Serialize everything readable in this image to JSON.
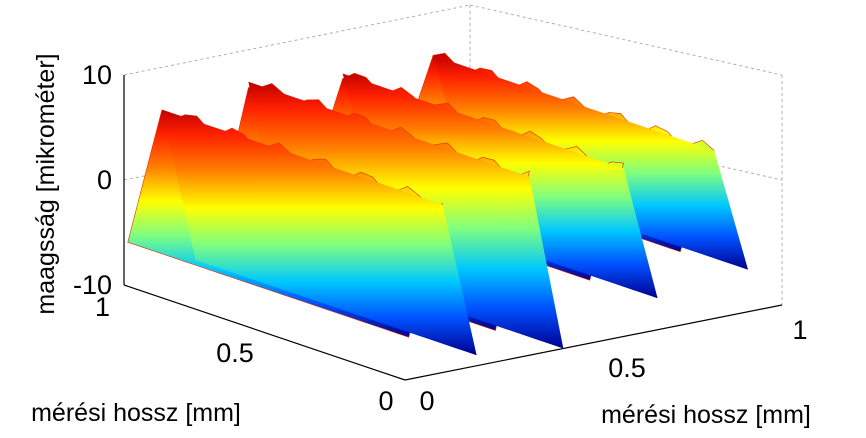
{
  "chart_data": {
    "type": "surface",
    "title": "",
    "zlabel": "maagsság [mikrométer]",
    "xlabel": "mérési hossz [mm]",
    "ylabel": "mérési hossz [mm]",
    "zlim": [
      -10,
      10
    ],
    "xlim": [
      0,
      1
    ],
    "ylim": [
      0,
      1
    ],
    "z_ticks": [
      "10",
      "0",
      "-10"
    ],
    "x_ticks": [
      "0",
      "0.5",
      "1"
    ],
    "y_ticks": [
      "0",
      "0.5",
      "1"
    ],
    "colormap": "jet",
    "grid": true,
    "ridges": [
      {
        "x_center": 0.1,
        "peak": 6,
        "trough": -9
      },
      {
        "x_center": 0.33,
        "peak": 7,
        "trough": -10
      },
      {
        "x_center": 0.58,
        "peak": 6,
        "trough": -7
      },
      {
        "x_center": 0.82,
        "peak": 6,
        "trough": -6
      }
    ]
  }
}
